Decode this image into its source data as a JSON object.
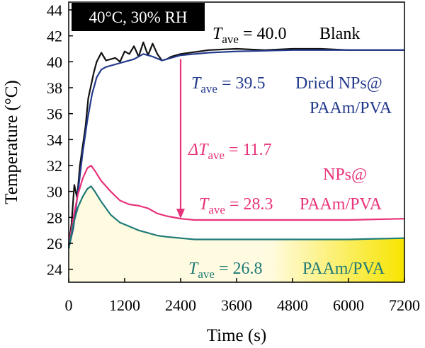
{
  "chart_data": {
    "type": "line",
    "title": "40°C, 30% RH",
    "xlabel": "Time (s)",
    "ylabel": "Temperature (°C)",
    "xlim": [
      0,
      7200
    ],
    "ylim": [
      23,
      44.6
    ],
    "xticks": [
      0,
      1200,
      2400,
      3600,
      4800,
      6000,
      7200
    ],
    "yticks": [
      24,
      26,
      28,
      30,
      32,
      34,
      36,
      38,
      40,
      42,
      44
    ],
    "colors": {
      "Blank": "#111111",
      "Dried NPs@PAAm/PVA": "#233a8c",
      "NPs@PAAm/PVA": "#e8327a",
      "PAAm/PVA": "#1f7a78",
      "arrow": "#e8327a",
      "fill_start": "#fffbe0",
      "fill_end": "#f7e400"
    },
    "series": [
      {
        "name": "Blank",
        "x": [
          0,
          60,
          120,
          180,
          240,
          300,
          360,
          420,
          480,
          540,
          600,
          700,
          800,
          900,
          1000,
          1100,
          1200,
          1300,
          1400,
          1500,
          1600,
          1700,
          1800,
          1900,
          2000,
          2100,
          2200,
          2400,
          2600,
          2800,
          3000,
          3600,
          4200,
          4800,
          5400,
          6000,
          6600,
          7200
        ],
        "y": [
          25.8,
          27.5,
          30.5,
          29.5,
          32.0,
          33.5,
          35.0,
          37.2,
          38.2,
          39.2,
          40.0,
          40.7,
          40.1,
          40.2,
          40.3,
          40.0,
          40.8,
          40.6,
          41.2,
          40.4,
          41.5,
          40.5,
          41.4,
          40.6,
          40.1,
          40.2,
          40.4,
          40.6,
          40.7,
          40.8,
          40.9,
          41.0,
          40.9,
          41.0,
          41.0,
          40.9,
          40.9,
          40.9
        ]
      },
      {
        "name": "Dried NPs@PAAm/PVA",
        "x": [
          0,
          100,
          200,
          300,
          400,
          500,
          600,
          700,
          800,
          1000,
          1200,
          1400,
          1600,
          1800,
          2000,
          2200,
          2400,
          3000,
          3600,
          4800,
          6000,
          7200
        ],
        "y": [
          25.6,
          27.2,
          30.0,
          33.0,
          35.5,
          37.5,
          38.8,
          39.4,
          39.6,
          39.8,
          40.0,
          40.2,
          40.6,
          40.4,
          40.1,
          40.3,
          40.5,
          40.7,
          40.8,
          40.9,
          40.9,
          40.9
        ]
      },
      {
        "name": "NPs@PAAm/PVA",
        "x": [
          0,
          100,
          200,
          300,
          400,
          480,
          560,
          700,
          900,
          1100,
          1300,
          1500,
          1700,
          1900,
          2100,
          2400,
          2700,
          3000,
          3600,
          4800,
          6000,
          7200
        ],
        "y": [
          25.8,
          28.0,
          29.8,
          31.0,
          31.8,
          32.0,
          31.6,
          30.8,
          30.0,
          29.3,
          29.0,
          28.9,
          28.7,
          28.3,
          28.1,
          27.9,
          27.8,
          27.8,
          27.8,
          27.8,
          27.8,
          27.9
        ]
      },
      {
        "name": "PAAm/PVA",
        "x": [
          0,
          100,
          200,
          300,
          400,
          480,
          560,
          700,
          900,
          1100,
          1300,
          1500,
          1700,
          1900,
          2100,
          2400,
          2700,
          3000,
          3600,
          4800,
          6000,
          7200
        ],
        "y": [
          25.6,
          27.5,
          28.8,
          29.6,
          30.2,
          30.4,
          30.0,
          29.2,
          28.2,
          27.6,
          27.3,
          27.0,
          26.8,
          26.6,
          26.5,
          26.4,
          26.3,
          26.3,
          26.3,
          26.3,
          26.3,
          26.4
        ]
      }
    ],
    "arrow": {
      "x": 2400,
      "y_from": 40.2,
      "y_to": 27.9
    },
    "annotations": {
      "blank_sym": "T",
      "blank_sub": "ave",
      "blank_val": " = 40.0",
      "blank_label": "Blank",
      "dried_sym": "T",
      "dried_sub": "ave",
      "dried_val": " = 39.5",
      "dried_label1": "Dried NPs@",
      "dried_label2": "PAAm/PVA",
      "delta_sym": "ΔT",
      "delta_sub": "ave",
      "delta_val": " = 11.7",
      "nps_label1": "NPs@",
      "nps_sym": "T",
      "nps_sub": "ave",
      "nps_val": " = 28.3",
      "nps_label2": "PAAm/PVA",
      "paam_sym": "T",
      "paam_sub": "ave",
      "paam_val": " = 26.8",
      "paam_label": "PAAm/PVA"
    }
  }
}
